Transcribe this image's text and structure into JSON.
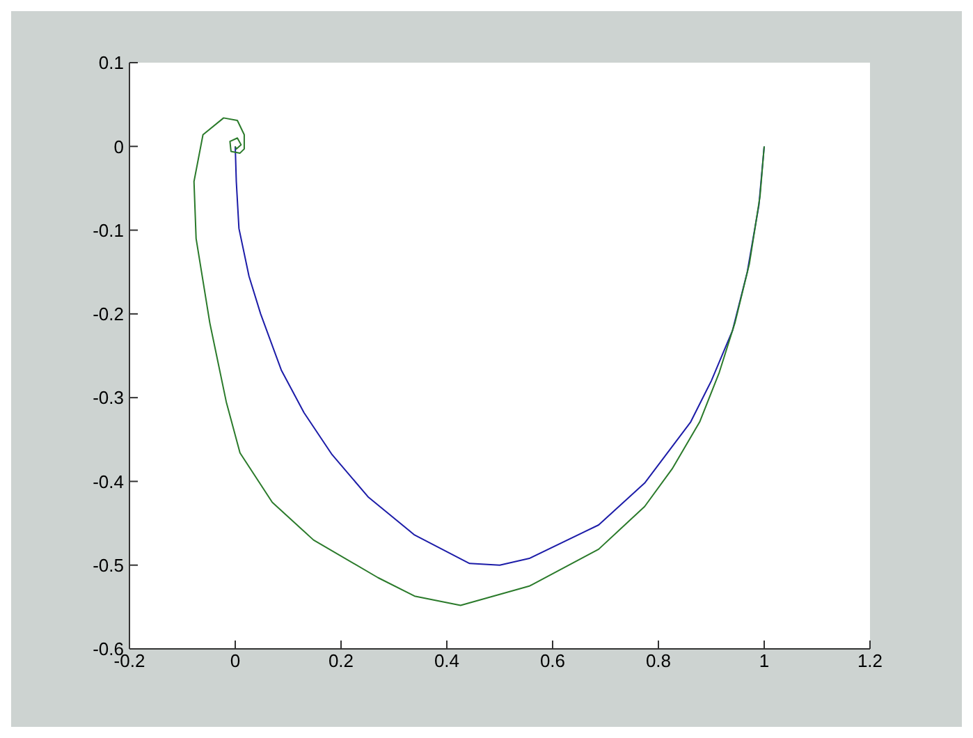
{
  "chart_data": {
    "type": "line",
    "xlim": [
      -0.2,
      1.2
    ],
    "ylim": [
      -0.6,
      0.1
    ],
    "xticks": [
      -0.2,
      0,
      0.2,
      0.4,
      0.6,
      0.8,
      1,
      1.2
    ],
    "yticks": [
      -0.6,
      -0.5,
      -0.4,
      -0.3,
      -0.2,
      -0.1,
      0,
      0.1
    ],
    "grid": false,
    "marker": "none",
    "line_style": "solid",
    "series": [
      {
        "color": "#1c1ca8",
        "x": [
          1,
          0.99,
          0.968,
          0.94,
          0.9,
          0.861,
          0.774,
          0.687,
          0.556,
          0.5,
          0.443,
          0.339,
          0.252,
          0.183,
          0.13,
          0.087,
          0.048,
          0.026,
          0.007,
          0.002,
          0
        ],
        "values": [
          0,
          -0.07,
          -0.15,
          -0.22,
          -0.28,
          -0.329,
          -0.402,
          -0.452,
          -0.492,
          -0.5,
          -0.498,
          -0.464,
          -0.419,
          -0.368,
          -0.318,
          -0.267,
          -0.2,
          -0.155,
          -0.098,
          -0.042,
          0
        ]
      },
      {
        "color": "#2a7a2a",
        "x": [
          1,
          0.992,
          0.972,
          0.945,
          0.915,
          0.878,
          0.826,
          0.774,
          0.687,
          0.556,
          0.426,
          0.339,
          0.27,
          0.148,
          0.07,
          0.009,
          -0.017,
          -0.048,
          -0.074,
          -0.078,
          -0.061,
          -0.022,
          0.004,
          0.017,
          0.017,
          0.009,
          -0.008,
          -0.01,
          0.004,
          0.011,
          0.002,
          0
        ],
        "values": [
          0,
          -0.06,
          -0.14,
          -0.21,
          -0.27,
          -0.329,
          -0.385,
          -0.43,
          -0.481,
          -0.525,
          -0.548,
          -0.537,
          -0.515,
          -0.47,
          -0.425,
          -0.366,
          -0.305,
          -0.211,
          -0.11,
          -0.042,
          0.014,
          0.034,
          0.031,
          0.014,
          -0.003,
          -0.008,
          -0.006,
          0.006,
          0.01,
          0.002,
          -0.003,
          0
        ]
      }
    ]
  }
}
